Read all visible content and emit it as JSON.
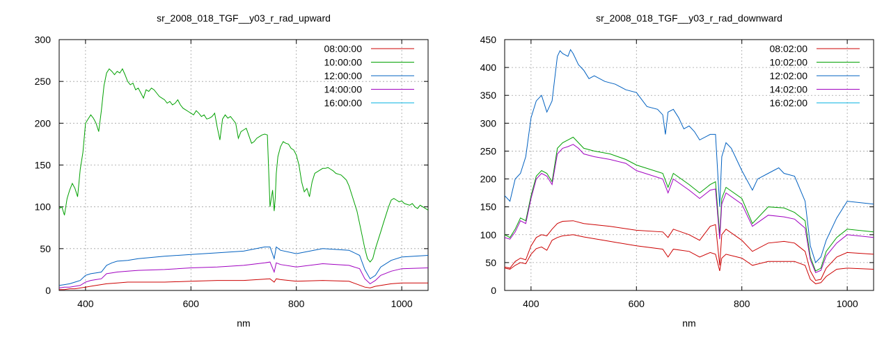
{
  "chart_data": [
    {
      "type": "line",
      "title": "sr_2008_018_TGF__y03_r_rad_upward",
      "xlabel": "nm",
      "ylabel": "",
      "xlim": [
        350,
        1050
      ],
      "ylim": [
        0,
        300
      ],
      "xticks": [
        400,
        600,
        800,
        1000
      ],
      "yticks": [
        0,
        50,
        100,
        150,
        200,
        250,
        300
      ],
      "grid": true,
      "legend_position": "top-right",
      "series": [
        {
          "name": "08:00:00",
          "color": "#cc0000",
          "x": [
            350,
            360,
            370,
            380,
            400,
            420,
            440,
            460,
            480,
            500,
            550,
            600,
            650,
            700,
            750,
            758,
            762,
            770,
            800,
            850,
            900,
            930,
            940,
            950,
            980,
            1000,
            1050
          ],
          "y": [
            1,
            1,
            2,
            2,
            4,
            6,
            8,
            9,
            10,
            10,
            10,
            11,
            12,
            12,
            14,
            10,
            14,
            13,
            11,
            12,
            11,
            4,
            3,
            5,
            8,
            9,
            9
          ]
        },
        {
          "name": "10:00:00",
          "color": "#00a000",
          "x": [
            350,
            355,
            360,
            365,
            370,
            375,
            380,
            385,
            390,
            395,
            400,
            405,
            410,
            415,
            420,
            425,
            430,
            435,
            440,
            445,
            450,
            455,
            460,
            465,
            470,
            475,
            480,
            485,
            490,
            495,
            500,
            505,
            510,
            515,
            520,
            525,
            530,
            535,
            540,
            545,
            550,
            555,
            560,
            565,
            570,
            575,
            580,
            585,
            590,
            595,
            600,
            605,
            610,
            615,
            620,
            625,
            630,
            635,
            640,
            645,
            650,
            655,
            660,
            665,
            670,
            675,
            680,
            685,
            690,
            695,
            700,
            705,
            710,
            715,
            720,
            725,
            730,
            735,
            740,
            745,
            750,
            755,
            758,
            760,
            762,
            765,
            770,
            775,
            780,
            785,
            790,
            795,
            800,
            805,
            810,
            815,
            820,
            825,
            830,
            835,
            840,
            845,
            850,
            855,
            860,
            865,
            870,
            875,
            880,
            885,
            890,
            895,
            900,
            905,
            910,
            915,
            920,
            925,
            930,
            935,
            940,
            945,
            950,
            955,
            960,
            965,
            970,
            975,
            980,
            985,
            990,
            995,
            1000,
            1005,
            1010,
            1015,
            1020,
            1025,
            1030,
            1035,
            1040,
            1045,
            1050
          ],
          "y": [
            98,
            100,
            90,
            110,
            120,
            128,
            122,
            112,
            145,
            165,
            200,
            205,
            210,
            206,
            200,
            190,
            215,
            245,
            260,
            265,
            262,
            258,
            262,
            260,
            265,
            258,
            250,
            246,
            248,
            240,
            242,
            236,
            230,
            240,
            238,
            242,
            240,
            236,
            232,
            230,
            228,
            224,
            226,
            222,
            224,
            228,
            222,
            218,
            216,
            214,
            212,
            210,
            215,
            212,
            208,
            210,
            205,
            206,
            208,
            212,
            195,
            180,
            205,
            210,
            206,
            208,
            204,
            200,
            182,
            190,
            192,
            194,
            185,
            176,
            178,
            182,
            184,
            186,
            187,
            186,
            100,
            120,
            95,
            110,
            140,
            160,
            172,
            178,
            176,
            175,
            170,
            168,
            162,
            150,
            130,
            118,
            122,
            112,
            130,
            140,
            142,
            144,
            146,
            146,
            147,
            145,
            143,
            140,
            139,
            138,
            135,
            132,
            125,
            115,
            105,
            95,
            80,
            65,
            50,
            38,
            34,
            38,
            50,
            60,
            70,
            80,
            90,
            100,
            108,
            110,
            108,
            106,
            107,
            104,
            103,
            102,
            104,
            100,
            98,
            102,
            100,
            98,
            96
          ]
        },
        {
          "name": "12:00:00",
          "color": "#0060c0",
          "x": [
            350,
            360,
            370,
            380,
            390,
            400,
            410,
            420,
            430,
            440,
            450,
            460,
            480,
            500,
            550,
            600,
            650,
            700,
            740,
            750,
            758,
            762,
            770,
            800,
            850,
            900,
            920,
            930,
            940,
            950,
            960,
            980,
            1000,
            1050
          ],
          "y": [
            6,
            7,
            8,
            10,
            12,
            18,
            20,
            21,
            22,
            30,
            33,
            35,
            36,
            38,
            41,
            43,
            45,
            47,
            52,
            52,
            38,
            52,
            48,
            44,
            50,
            48,
            42,
            25,
            14,
            18,
            28,
            36,
            40,
            42
          ]
        },
        {
          "name": "14:00:00",
          "color": "#a000c0",
          "x": [
            350,
            360,
            370,
            380,
            390,
            400,
            410,
            420,
            430,
            440,
            450,
            460,
            480,
            500,
            550,
            600,
            650,
            700,
            740,
            750,
            758,
            762,
            770,
            800,
            850,
            900,
            920,
            930,
            940,
            950,
            960,
            980,
            1000,
            1050
          ],
          "y": [
            3,
            4,
            4,
            5,
            6,
            10,
            12,
            13,
            14,
            20,
            21,
            22,
            23,
            24,
            25,
            27,
            28,
            30,
            33,
            34,
            22,
            33,
            31,
            28,
            32,
            30,
            26,
            14,
            8,
            12,
            18,
            23,
            26,
            27
          ]
        },
        {
          "name": "16:00:00",
          "color": "#00b0e0",
          "x": [],
          "y": []
        }
      ]
    },
    {
      "type": "line",
      "title": "sr_2008_018_TGF__y03_r_rad_downward",
      "xlabel": "nm",
      "ylabel": "",
      "xlim": [
        350,
        1050
      ],
      "ylim": [
        0,
        450
      ],
      "xticks": [
        400,
        600,
        800,
        1000
      ],
      "yticks": [
        0,
        50,
        100,
        150,
        200,
        250,
        300,
        350,
        400,
        450
      ],
      "grid": true,
      "legend_position": "top-right",
      "series": [
        {
          "name": "08:02:00",
          "color": "#cc0000",
          "x": [
            350,
            360,
            370,
            380,
            390,
            400,
            410,
            420,
            430,
            440,
            450,
            460,
            480,
            500,
            550,
            600,
            650,
            660,
            670,
            700,
            720,
            740,
            750,
            758,
            762,
            770,
            800,
            820,
            850,
            900,
            920,
            930,
            940,
            950,
            960,
            980,
            1000,
            1050
          ],
          "y": [
            40,
            38,
            45,
            50,
            48,
            65,
            75,
            78,
            72,
            90,
            95,
            98,
            100,
            96,
            88,
            80,
            74,
            60,
            74,
            70,
            60,
            68,
            65,
            35,
            58,
            65,
            58,
            45,
            52,
            52,
            45,
            20,
            12,
            14,
            25,
            38,
            40,
            38
          ]
        },
        {
          "name": "10:02:00",
          "color": "#00a000",
          "x": [
            350,
            360,
            370,
            380,
            390,
            400,
            410,
            420,
            430,
            440,
            450,
            460,
            470,
            480,
            490,
            500,
            520,
            550,
            580,
            600,
            650,
            660,
            670,
            700,
            720,
            740,
            750,
            758,
            762,
            770,
            800,
            820,
            850,
            880,
            900,
            920,
            930,
            940,
            950,
            960,
            980,
            1000,
            1050
          ],
          "y": [
            100,
            95,
            110,
            130,
            125,
            170,
            205,
            215,
            210,
            195,
            255,
            265,
            270,
            275,
            265,
            255,
            250,
            245,
            235,
            225,
            210,
            185,
            210,
            190,
            175,
            190,
            195,
            100,
            165,
            185,
            165,
            120,
            150,
            148,
            140,
            125,
            60,
            35,
            40,
            70,
            95,
            110,
            105
          ]
        },
        {
          "name": "12:02:00",
          "color": "#0060c0",
          "x": [
            350,
            360,
            370,
            380,
            390,
            400,
            410,
            420,
            430,
            440,
            450,
            455,
            460,
            470,
            475,
            480,
            490,
            500,
            510,
            520,
            540,
            560,
            580,
            600,
            620,
            640,
            650,
            655,
            660,
            670,
            680,
            690,
            700,
            710,
            720,
            740,
            750,
            758,
            762,
            770,
            780,
            800,
            820,
            830,
            850,
            870,
            880,
            900,
            920,
            930,
            940,
            950,
            960,
            980,
            1000,
            1050
          ],
          "y": [
            170,
            160,
            200,
            210,
            240,
            310,
            340,
            350,
            320,
            340,
            420,
            430,
            425,
            420,
            432,
            425,
            405,
            395,
            380,
            385,
            375,
            370,
            360,
            355,
            330,
            325,
            315,
            280,
            320,
            325,
            310,
            290,
            295,
            285,
            270,
            280,
            280,
            150,
            240,
            265,
            255,
            215,
            180,
            200,
            210,
            220,
            210,
            205,
            160,
            80,
            50,
            60,
            90,
            130,
            160,
            155
          ]
        },
        {
          "name": "14:02:00",
          "color": "#a000c0",
          "x": [
            350,
            360,
            370,
            380,
            390,
            400,
            410,
            420,
            430,
            440,
            450,
            460,
            470,
            480,
            490,
            500,
            520,
            550,
            580,
            600,
            650,
            660,
            670,
            700,
            720,
            740,
            750,
            758,
            762,
            770,
            800,
            820,
            850,
            880,
            900,
            920,
            930,
            940,
            950,
            960,
            980,
            1000,
            1050
          ],
          "y": [
            95,
            92,
            105,
            125,
            120,
            165,
            200,
            210,
            205,
            190,
            245,
            255,
            258,
            262,
            255,
            245,
            240,
            235,
            228,
            215,
            200,
            175,
            200,
            180,
            165,
            180,
            182,
            92,
            155,
            175,
            155,
            115,
            135,
            132,
            128,
            112,
            55,
            32,
            36,
            62,
            85,
            100,
            95
          ]
        },
        {
          "name": "16:02:00",
          "color": "#00b0e0",
          "x": [],
          "y": []
        }
      ],
      "extra_series": [
        {
          "color": "#cc0000",
          "x": [
            350,
            360,
            370,
            380,
            390,
            400,
            410,
            420,
            430,
            440,
            450,
            460,
            480,
            500,
            550,
            600,
            650,
            660,
            670,
            700,
            720,
            740,
            750,
            758,
            762,
            770,
            800,
            820,
            850,
            880,
            900,
            920,
            930,
            940,
            950,
            960,
            980,
            1000,
            1050
          ],
          "y": [
            42,
            40,
            52,
            58,
            55,
            80,
            95,
            100,
            98,
            110,
            120,
            124,
            125,
            120,
            115,
            108,
            105,
            95,
            110,
            100,
            90,
            115,
            118,
            45,
            100,
            110,
            90,
            70,
            85,
            88,
            85,
            70,
            35,
            18,
            20,
            40,
            60,
            68,
            65
          ]
        }
      ]
    }
  ]
}
